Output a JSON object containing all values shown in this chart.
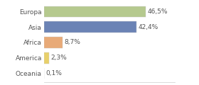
{
  "categories": [
    "Europa",
    "Asia",
    "Africa",
    "America",
    "Oceania"
  ],
  "values": [
    46.5,
    42.4,
    8.7,
    2.3,
    0.1
  ],
  "labels": [
    "46,5%",
    "42,4%",
    "8,7%",
    "2,3%",
    "0,1%"
  ],
  "bar_colors": [
    "#b5c98e",
    "#6b83b5",
    "#e8aa78",
    "#e8d06a",
    "#ffffff"
  ],
  "background_color": "#ffffff",
  "text_color": "#555555",
  "label_fontsize": 6.5,
  "bar_edge_color": "#cccccc",
  "xlim": [
    0,
    60
  ],
  "bar_height": 0.72,
  "figsize": [
    2.8,
    1.2
  ],
  "dpi": 100
}
